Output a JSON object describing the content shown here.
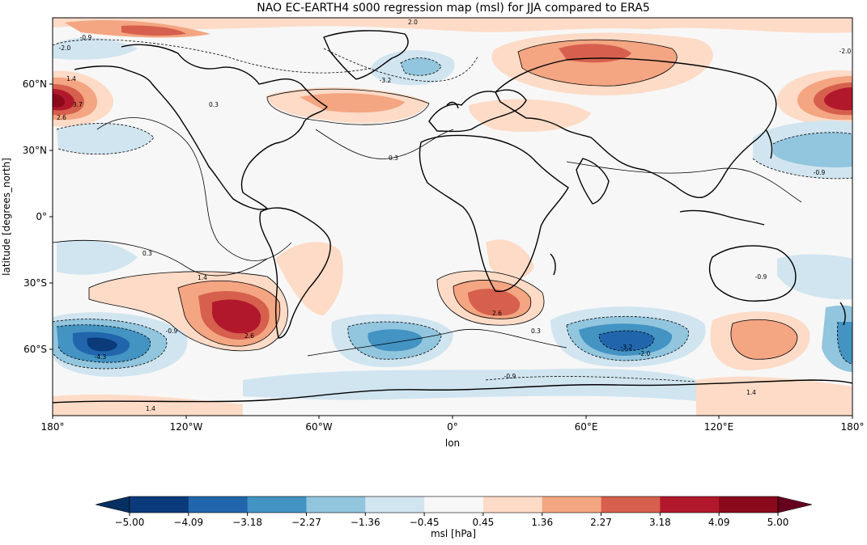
{
  "map": {
    "title": "NAO EC-EARTH4 s000 regression map (msl) for JJA compared to ERA5",
    "xlabel": "lon",
    "ylabel": "latitude [degrees_north]",
    "x_ticks": [
      "180°",
      "120°W",
      "60°W",
      "0°",
      "60°E",
      "120°E",
      "180°"
    ],
    "y_ticks": [
      "60°N",
      "30°N",
      "0°",
      "30°S",
      "60°S"
    ],
    "contour_labels": [
      "2.0",
      "-0.9",
      "-2.0",
      "1.4",
      "0.3",
      "-3.2",
      "2.6",
      "3.7",
      "-4.3",
      "1.4",
      "2.6",
      "-2.0",
      "-0.9",
      "0.3",
      "-3.2",
      "-2.0",
      "-0.9",
      "2.6",
      "-0.9",
      "0.3",
      "0.3",
      "1.4",
      "1.4",
      "-0.9"
    ]
  },
  "colorbar": {
    "label": "msl [hPa]",
    "ticks": [
      "-5.00",
      "-4.09",
      "-3.18",
      "-2.27",
      "-1.36",
      "-0.45",
      "0.45",
      "1.36",
      "2.27",
      "3.18",
      "4.09",
      "5.00"
    ],
    "colors": [
      "#0a3a7a",
      "#2166ac",
      "#4393c3",
      "#92c5de",
      "#d1e5f0",
      "#f7f7f7",
      "#fddbc7",
      "#f4a582",
      "#d6604d",
      "#b2182b",
      "#8a0a1c"
    ],
    "under_color": "#053061",
    "over_color": "#67001f"
  }
}
